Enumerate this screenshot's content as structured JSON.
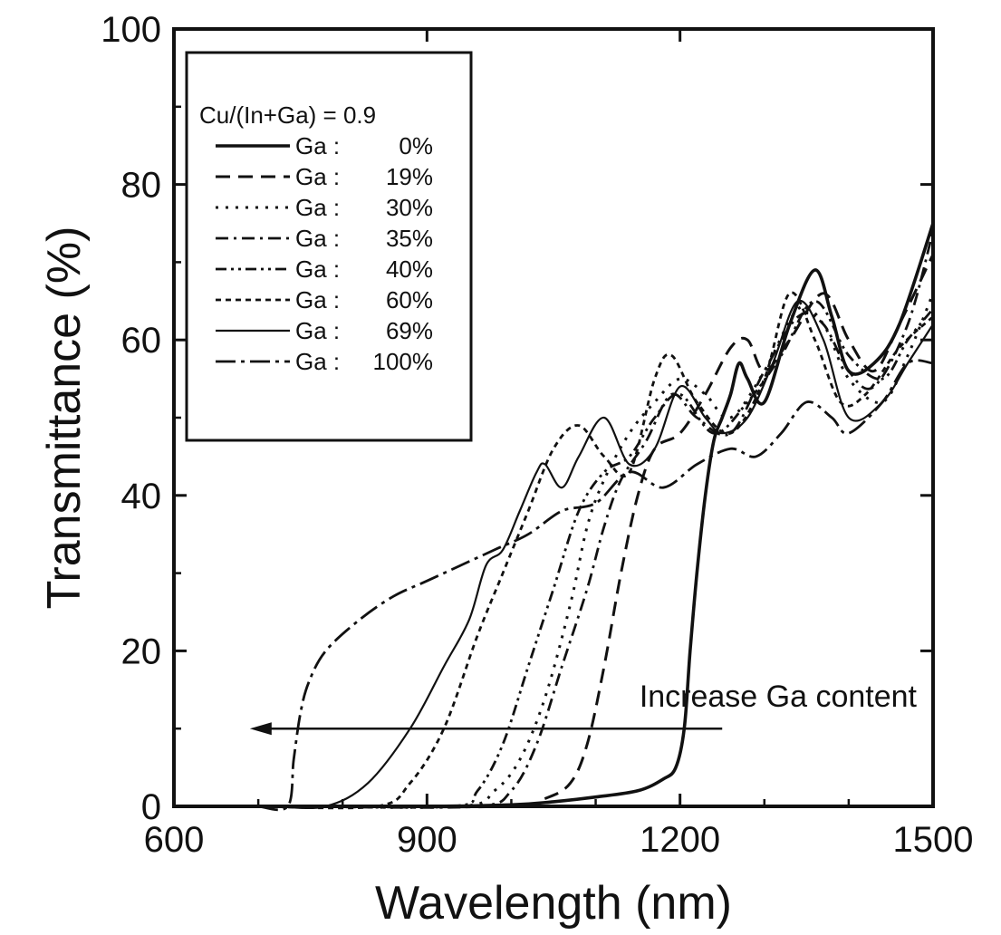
{
  "chart_data": {
    "type": "line",
    "title": "",
    "xlabel": "Wavelength (nm)",
    "ylabel": "Transmittance (%)",
    "xlim": [
      600,
      1500
    ],
    "ylim": [
      0,
      100
    ],
    "xticks": [
      600,
      900,
      1200,
      1500
    ],
    "yticks": [
      0,
      20,
      40,
      60,
      80,
      100
    ],
    "grid": false,
    "legend": {
      "placement": "top-left",
      "title": "Cu/(In+Ga) = 0.9",
      "entries": [
        {
          "label": "Ga :",
          "value": "0%"
        },
        {
          "label": "Ga :",
          "value": "19%"
        },
        {
          "label": "Ga :",
          "value": "30%"
        },
        {
          "label": "Ga :",
          "value": "35%"
        },
        {
          "label": "Ga :",
          "value": "40%"
        },
        {
          "label": "Ga :",
          "value": "60%"
        },
        {
          "label": "Ga :",
          "value": "69%"
        },
        {
          "label": "Ga :",
          "value": "100%"
        }
      ]
    },
    "annotation": {
      "text": "Increase Ga content",
      "arrow_from": [
        1250,
        10
      ],
      "arrow_to": [
        690,
        10
      ]
    },
    "series": [
      {
        "name": "Ga : 0%",
        "style": "solid-thick",
        "x": [
          700,
          900,
          1000,
          1050,
          1100,
          1150,
          1180,
          1195,
          1205,
          1212,
          1220,
          1230,
          1240,
          1250,
          1260,
          1270,
          1280,
          1300,
          1330,
          1360,
          1380,
          1400,
          1430,
          1460,
          1500
        ],
        "y": [
          0,
          0,
          0.2,
          0.6,
          1.2,
          2,
          3.5,
          5,
          10,
          20,
          30,
          40,
          47,
          50,
          53,
          57,
          55,
          52,
          62,
          69,
          63,
          56,
          57,
          62,
          75
        ]
      },
      {
        "name": "Ga : 19%",
        "style": "dash",
        "x": [
          800,
          1000,
          1040,
          1070,
          1090,
          1110,
          1130,
          1150,
          1170,
          1200,
          1230,
          1260,
          1280,
          1300,
          1330,
          1370,
          1400,
          1430,
          1460,
          1500
        ],
        "y": [
          0,
          0,
          1,
          3,
          8,
          18,
          30,
          40,
          46,
          48,
          53,
          59,
          60,
          56,
          60,
          66,
          60,
          56,
          62,
          71
        ]
      },
      {
        "name": "Ga : 30%",
        "style": "dot",
        "x": [
          750,
          940,
          980,
          1010,
          1040,
          1070,
          1090,
          1110,
          1140,
          1170,
          1200,
          1230,
          1260,
          1300,
          1340,
          1370,
          1400,
          1440,
          1470,
          1500
        ],
        "y": [
          0,
          0,
          2,
          6,
          14,
          26,
          36,
          42,
          48,
          52,
          55,
          53,
          50,
          56,
          64,
          62,
          55,
          52,
          58,
          66
        ]
      },
      {
        "name": "Ga : 35%",
        "style": "dashdot",
        "x": [
          800,
          960,
          1000,
          1030,
          1060,
          1090,
          1110,
          1130,
          1160,
          1190,
          1220,
          1260,
          1300,
          1340,
          1370,
          1400,
          1430,
          1470,
          1500
        ],
        "y": [
          0,
          0,
          2,
          8,
          18,
          28,
          36,
          42,
          47,
          53,
          50,
          48,
          56,
          63,
          62,
          56,
          54,
          62,
          74
        ]
      },
      {
        "name": "Ga : 40%",
        "style": "dashdotdot",
        "x": [
          750,
          930,
          960,
          990,
          1020,
          1050,
          1080,
          1110,
          1140,
          1170,
          1200,
          1240,
          1280,
          1320,
          1360,
          1400,
          1440,
          1470,
          1500
        ],
        "y": [
          0,
          0,
          2,
          8,
          18,
          28,
          38,
          43,
          45,
          50,
          53,
          48,
          52,
          58,
          65,
          58,
          55,
          60,
          64
        ]
      },
      {
        "name": "Ga : 60%",
        "style": "shortdash",
        "x": [
          700,
          840,
          880,
          920,
          960,
          990,
          1020,
          1050,
          1080,
          1110,
          1140,
          1170,
          1190,
          1220,
          1260,
          1300,
          1330,
          1360,
          1390,
          1420,
          1460,
          1500
        ],
        "y": [
          0,
          0,
          3,
          10,
          22,
          30,
          38,
          46,
          49,
          45,
          43,
          55,
          58,
          52,
          48,
          55,
          66,
          60,
          52,
          53,
          59,
          63
        ]
      },
      {
        "name": "Ga : 69%",
        "style": "solid-thin",
        "x": [
          720,
          780,
          830,
          880,
          920,
          950,
          970,
          990,
          1010,
          1030,
          1040,
          1060,
          1080,
          1110,
          1140,
          1170,
          1200,
          1230,
          1250,
          1280,
          1310,
          1340,
          1370,
          1400,
          1440,
          1470,
          1500
        ],
        "y": [
          0,
          0,
          3,
          10,
          18,
          24,
          31,
          33,
          38,
          43,
          44,
          41,
          45,
          50,
          44,
          46,
          54,
          50,
          48,
          50,
          57,
          65,
          60,
          50,
          52,
          57,
          62
        ]
      },
      {
        "name": "Ga : 100%",
        "style": "dashdot-long",
        "x": [
          700,
          735,
          742,
          750,
          760,
          780,
          820,
          860,
          900,
          940,
          980,
          1020,
          1060,
          1100,
          1140,
          1180,
          1220,
          1260,
          1290,
          1320,
          1350,
          1380,
          1400,
          1440,
          1470,
          1500
        ],
        "y": [
          0,
          0,
          6,
          12,
          16,
          20,
          24,
          27,
          29,
          31,
          33,
          35,
          38,
          39,
          43,
          41,
          44,
          46,
          45,
          48,
          52,
          50,
          48,
          52,
          57,
          57
        ]
      }
    ]
  }
}
